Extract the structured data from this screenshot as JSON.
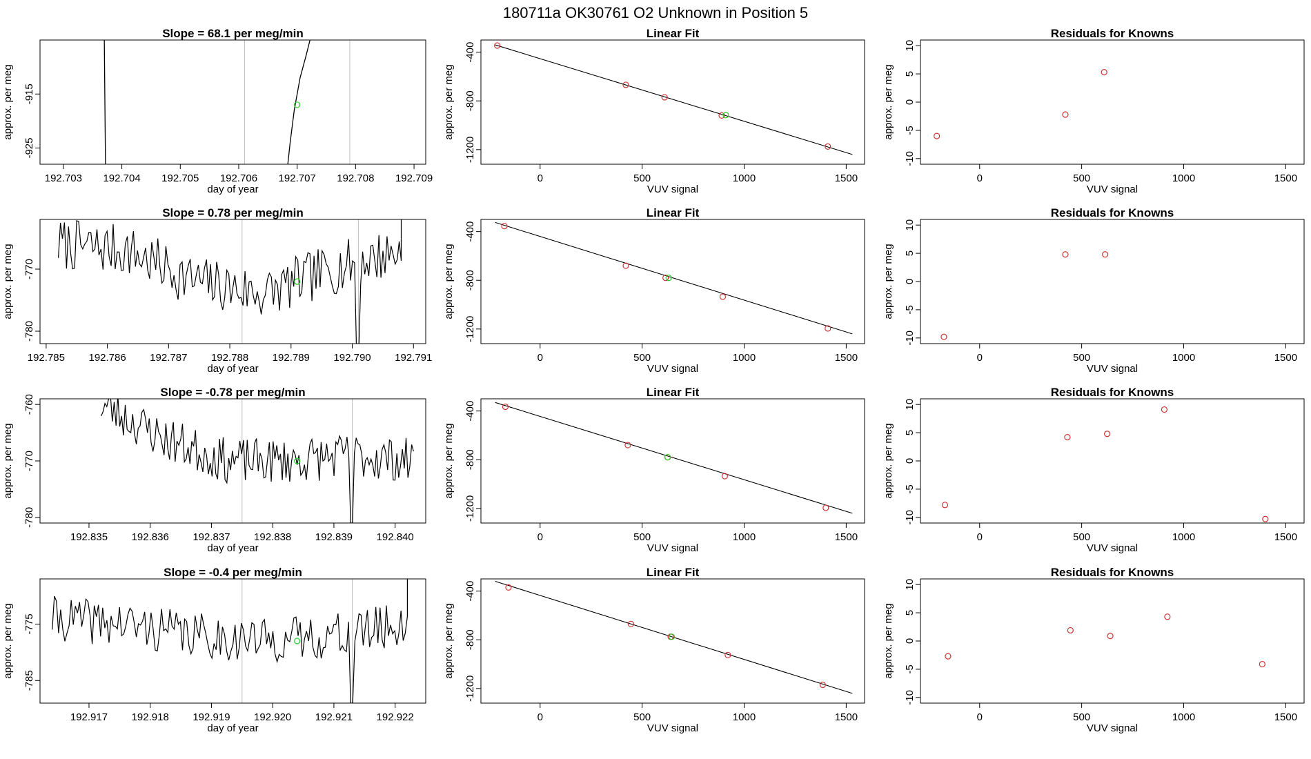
{
  "main_title": "180711a      OK30761    O2 Unknown in Position  5",
  "colors": {
    "line": "#000000",
    "known": "#cd3333",
    "unknown": "#22cc22",
    "vline": "#bebebe"
  },
  "chart_data": [
    {
      "type": "line",
      "panel": "timeseries",
      "row": 1,
      "title": "Slope =  68.1  per meg/min",
      "xlabel": "day of year",
      "ylabel": "approx. per meg",
      "xlim": [
        192.7026,
        192.7092
      ],
      "ylim": [
        -928,
        -905
      ],
      "xticks": [
        192.703,
        192.704,
        192.705,
        192.706,
        192.707,
        192.708,
        192.709
      ],
      "xtick_labels": [
        "192.703",
        "192.704",
        "192.705",
        "192.706",
        "192.707",
        "192.708",
        "192.709"
      ],
      "yticks": [
        -915,
        -925
      ],
      "ytick_labels": [
        "-915",
        "-925"
      ],
      "vlines": [
        192.7061,
        192.7079
      ],
      "unknown_point": {
        "x": 192.707,
        "y": -917
      },
      "segments": [
        [
          [
            192.7037,
            -905
          ],
          [
            192.70372,
            -928
          ]
        ],
        [
          [
            192.70684,
            -928
          ],
          [
            192.70688,
            -924
          ],
          [
            192.70695,
            -918
          ],
          [
            192.70705,
            -912
          ],
          [
            192.70715,
            -908
          ],
          [
            192.70722,
            -905
          ]
        ]
      ]
    },
    {
      "type": "scatter",
      "panel": "linear_fit",
      "row": 1,
      "title": "Linear Fit",
      "xlabel": "VUV signal",
      "ylabel": "approx. per meg",
      "xlim": [
        -290,
        1590
      ],
      "ylim": [
        -1320,
        -300
      ],
      "xticks": [
        0,
        500,
        1000,
        1500
      ],
      "xtick_labels": [
        "0",
        "500",
        "1000",
        "1500"
      ],
      "yticks": [
        -400,
        -800,
        -1200
      ],
      "ytick_labels": [
        "-400",
        "-800",
        "-1200"
      ],
      "fit_line": {
        "x1": -220,
        "y1": -340,
        "x2": 1530,
        "y2": -1240
      },
      "knowns": [
        {
          "x": -210,
          "y": -345
        },
        {
          "x": 420,
          "y": -668
        },
        {
          "x": 610,
          "y": -770
        },
        {
          "x": 890,
          "y": -920
        },
        {
          "x": 1410,
          "y": -1175
        }
      ],
      "unknowns": [
        {
          "x": 910,
          "y": -917
        }
      ]
    },
    {
      "type": "scatter",
      "panel": "residuals",
      "row": 1,
      "title": "Residuals for Knowns",
      "xlabel": "VUV signal",
      "ylabel": "approx. per meg",
      "xlim": [
        -290,
        1590
      ],
      "ylim": [
        -11,
        11
      ],
      "xticks": [
        0,
        500,
        1000,
        1500
      ],
      "xtick_labels": [
        "0",
        "500",
        "1000",
        "1500"
      ],
      "yticks": [
        10,
        5,
        0,
        -5,
        -10
      ],
      "ytick_labels": [
        "10",
        "5",
        "0",
        "-5",
        "-10"
      ],
      "points": [
        {
          "x": -210,
          "y": -6
        },
        {
          "x": 420,
          "y": -2.2
        },
        {
          "x": 610,
          "y": 5.3
        }
      ]
    },
    {
      "type": "line",
      "panel": "timeseries",
      "row": 2,
      "title": "Slope =  0.78  per meg/min",
      "xlabel": "day of year",
      "ylabel": "approx. per meg",
      "xlim": [
        192.7849,
        192.7912
      ],
      "ylim": [
        -782,
        -762
      ],
      "xticks": [
        192.785,
        192.786,
        192.787,
        192.788,
        192.789,
        192.79,
        192.791
      ],
      "xtick_labels": [
        "192.785",
        "192.786",
        "192.787",
        "192.788",
        "192.789",
        "192.790",
        "192.791"
      ],
      "yticks": [
        -770,
        -780
      ],
      "ytick_labels": [
        "-770",
        "-780"
      ],
      "vlines": [
        192.7882,
        192.7901
      ],
      "unknown_point": {
        "x": 192.7891,
        "y": -772
      },
      "noise": {
        "x0": 192.7852,
        "x1": 192.7908,
        "level": [
          -766,
          -767,
          -772,
          -774,
          -770,
          -767
        ],
        "amp": 4.2,
        "seed": 7,
        "spike": {
          "x": 192.7901,
          "y": -784
        },
        "tail": {
          "x": 192.7908,
          "y": -762
        }
      }
    },
    {
      "type": "scatter",
      "panel": "linear_fit",
      "row": 2,
      "title": "Linear Fit",
      "xlabel": "VUV signal",
      "ylabel": "approx. per meg",
      "xlim": [
        -290,
        1590
      ],
      "ylim": [
        -1320,
        -300
      ],
      "xticks": [
        0,
        500,
        1000,
        1500
      ],
      "xtick_labels": [
        "0",
        "500",
        "1000",
        "1500"
      ],
      "yticks": [
        -400,
        -800,
        -1200
      ],
      "ytick_labels": [
        "-400",
        "-800",
        "-1200"
      ],
      "fit_line": {
        "x1": -220,
        "y1": -325,
        "x2": 1530,
        "y2": -1240
      },
      "knowns": [
        {
          "x": -175,
          "y": -355
        },
        {
          "x": 420,
          "y": -680
        },
        {
          "x": 615,
          "y": -780
        },
        {
          "x": 895,
          "y": -935
        },
        {
          "x": 1410,
          "y": -1195
        }
      ],
      "unknowns": [
        {
          "x": 630,
          "y": -780
        }
      ]
    },
    {
      "type": "scatter",
      "panel": "residuals",
      "row": 2,
      "title": "Residuals for Knowns",
      "xlabel": "VUV signal",
      "ylabel": "approx. per meg",
      "xlim": [
        -290,
        1590
      ],
      "ylim": [
        -11,
        11
      ],
      "xticks": [
        0,
        500,
        1000,
        1500
      ],
      "xtick_labels": [
        "0",
        "500",
        "1000",
        "1500"
      ],
      "yticks": [
        10,
        5,
        0,
        -5,
        -10
      ],
      "ytick_labels": [
        "10",
        "5",
        "0",
        "-5",
        "-10"
      ],
      "points": [
        {
          "x": -175,
          "y": -9.8
        },
        {
          "x": 420,
          "y": 4.8
        },
        {
          "x": 615,
          "y": 4.8
        }
      ]
    },
    {
      "type": "line",
      "panel": "timeseries",
      "row": 3,
      "title": "Slope =  -0.78  per meg/min",
      "xlabel": "day of year",
      "ylabel": "approx. per meg",
      "xlim": [
        192.8342,
        192.8405
      ],
      "ylim": [
        -781,
        -759
      ],
      "xticks": [
        192.835,
        192.836,
        192.837,
        192.838,
        192.839,
        192.84
      ],
      "xtick_labels": [
        "192.835",
        "192.836",
        "192.837",
        "192.838",
        "192.839",
        "192.840"
      ],
      "yticks": [
        -760,
        -770,
        -780
      ],
      "ytick_labels": [
        "-760",
        "-770",
        "-780"
      ],
      "vlines": [
        192.8375,
        192.8393
      ],
      "unknown_point": {
        "x": 192.8384,
        "y": -770
      },
      "noise": {
        "x0": 192.8352,
        "x1": 192.8403,
        "level": [
          -760,
          -766,
          -770,
          -770,
          -769,
          -770
        ],
        "amp": 4,
        "seed": 23,
        "spike": {
          "x": 192.8393,
          "y": -781
        }
      }
    },
    {
      "type": "scatter",
      "panel": "linear_fit",
      "row": 3,
      "title": "Linear Fit",
      "xlabel": "VUV signal",
      "ylabel": "approx. per meg",
      "xlim": [
        -290,
        1590
      ],
      "ylim": [
        -1320,
        -300
      ],
      "xticks": [
        0,
        500,
        1000,
        1500
      ],
      "xtick_labels": [
        "0",
        "500",
        "1000",
        "1500"
      ],
      "yticks": [
        -400,
        -800,
        -1200
      ],
      "ytick_labels": [
        "-400",
        "-800",
        "-1200"
      ],
      "fit_line": {
        "x1": -220,
        "y1": -330,
        "x2": 1530,
        "y2": -1240
      },
      "knowns": [
        {
          "x": -170,
          "y": -365
        },
        {
          "x": 430,
          "y": -680
        },
        {
          "x": 625,
          "y": -780
        },
        {
          "x": 905,
          "y": -935
        },
        {
          "x": 1400,
          "y": -1195
        }
      ],
      "unknowns": [
        {
          "x": 625,
          "y": -780
        }
      ]
    },
    {
      "type": "scatter",
      "panel": "residuals",
      "row": 3,
      "title": "Residuals for Knowns",
      "xlabel": "VUV signal",
      "ylabel": "approx. per meg",
      "xlim": [
        -290,
        1590
      ],
      "ylim": [
        -11,
        11
      ],
      "xticks": [
        0,
        500,
        1000,
        1500
      ],
      "xtick_labels": [
        "0",
        "500",
        "1000",
        "1500"
      ],
      "yticks": [
        10,
        5,
        0,
        -5,
        -10
      ],
      "ytick_labels": [
        "10",
        "5",
        "0",
        "-5",
        "-10"
      ],
      "points": [
        {
          "x": -170,
          "y": -7.8
        },
        {
          "x": 430,
          "y": 4.2
        },
        {
          "x": 625,
          "y": 4.8
        },
        {
          "x": 905,
          "y": 9.1
        },
        {
          "x": 1400,
          "y": -10.3
        }
      ]
    },
    {
      "type": "line",
      "panel": "timeseries",
      "row": 4,
      "title": "Slope =  -0.4  per meg/min",
      "xlabel": "day of year",
      "ylabel": "approx. per meg",
      "xlim": [
        192.9162,
        192.9225
      ],
      "ylim": [
        -789,
        -767
      ],
      "xticks": [
        192.917,
        192.918,
        192.919,
        192.92,
        192.921,
        192.922
      ],
      "xtick_labels": [
        "192.917",
        "192.918",
        "192.919",
        "192.920",
        "192.921",
        "192.922"
      ],
      "yticks": [
        -775,
        -785
      ],
      "ytick_labels": [
        "-775",
        "-785"
      ],
      "vlines": [
        192.9195,
        192.9213
      ],
      "unknown_point": {
        "x": 192.9204,
        "y": -778
      },
      "noise": {
        "x0": 192.9164,
        "x1": 192.9222,
        "level": [
          -774,
          -775,
          -777,
          -778,
          -777,
          -775
        ],
        "amp": 4,
        "seed": 41,
        "spike": {
          "x": 192.9213,
          "y": -789
        },
        "tail": {
          "x": 192.9222,
          "y": -767
        }
      }
    },
    {
      "type": "scatter",
      "panel": "linear_fit",
      "row": 4,
      "title": "Linear Fit",
      "xlabel": "VUV signal",
      "ylabel": "approx. per meg",
      "xlim": [
        -290,
        1590
      ],
      "ylim": [
        -1320,
        -300
      ],
      "xticks": [
        0,
        500,
        1000,
        1500
      ],
      "xtick_labels": [
        "0",
        "500",
        "1000",
        "1500"
      ],
      "yticks": [
        -400,
        -800,
        -1200
      ],
      "ytick_labels": [
        "-400",
        "-800",
        "-1200"
      ],
      "fit_line": {
        "x1": -220,
        "y1": -320,
        "x2": 1530,
        "y2": -1240
      },
      "knowns": [
        {
          "x": -155,
          "y": -370
        },
        {
          "x": 445,
          "y": -670
        },
        {
          "x": 640,
          "y": -775
        },
        {
          "x": 920,
          "y": -925
        },
        {
          "x": 1385,
          "y": -1170
        }
      ],
      "unknowns": [
        {
          "x": 645,
          "y": -775
        }
      ]
    },
    {
      "type": "scatter",
      "panel": "residuals",
      "row": 4,
      "title": "Residuals for Knowns",
      "xlabel": "VUV signal",
      "ylabel": "approx. per meg",
      "xlim": [
        -290,
        1590
      ],
      "ylim": [
        -11,
        11
      ],
      "xticks": [
        0,
        500,
        1000,
        1500
      ],
      "xtick_labels": [
        "0",
        "500",
        "1000",
        "1500"
      ],
      "yticks": [
        10,
        5,
        0,
        -5,
        -10
      ],
      "ytick_labels": [
        "10",
        "5",
        "0",
        "-5",
        "-10"
      ],
      "points": [
        {
          "x": -155,
          "y": -2.7
        },
        {
          "x": 445,
          "y": 1.9
        },
        {
          "x": 640,
          "y": 0.9
        },
        {
          "x": 920,
          "y": 4.3
        },
        {
          "x": 1385,
          "y": -4.1
        }
      ]
    }
  ]
}
